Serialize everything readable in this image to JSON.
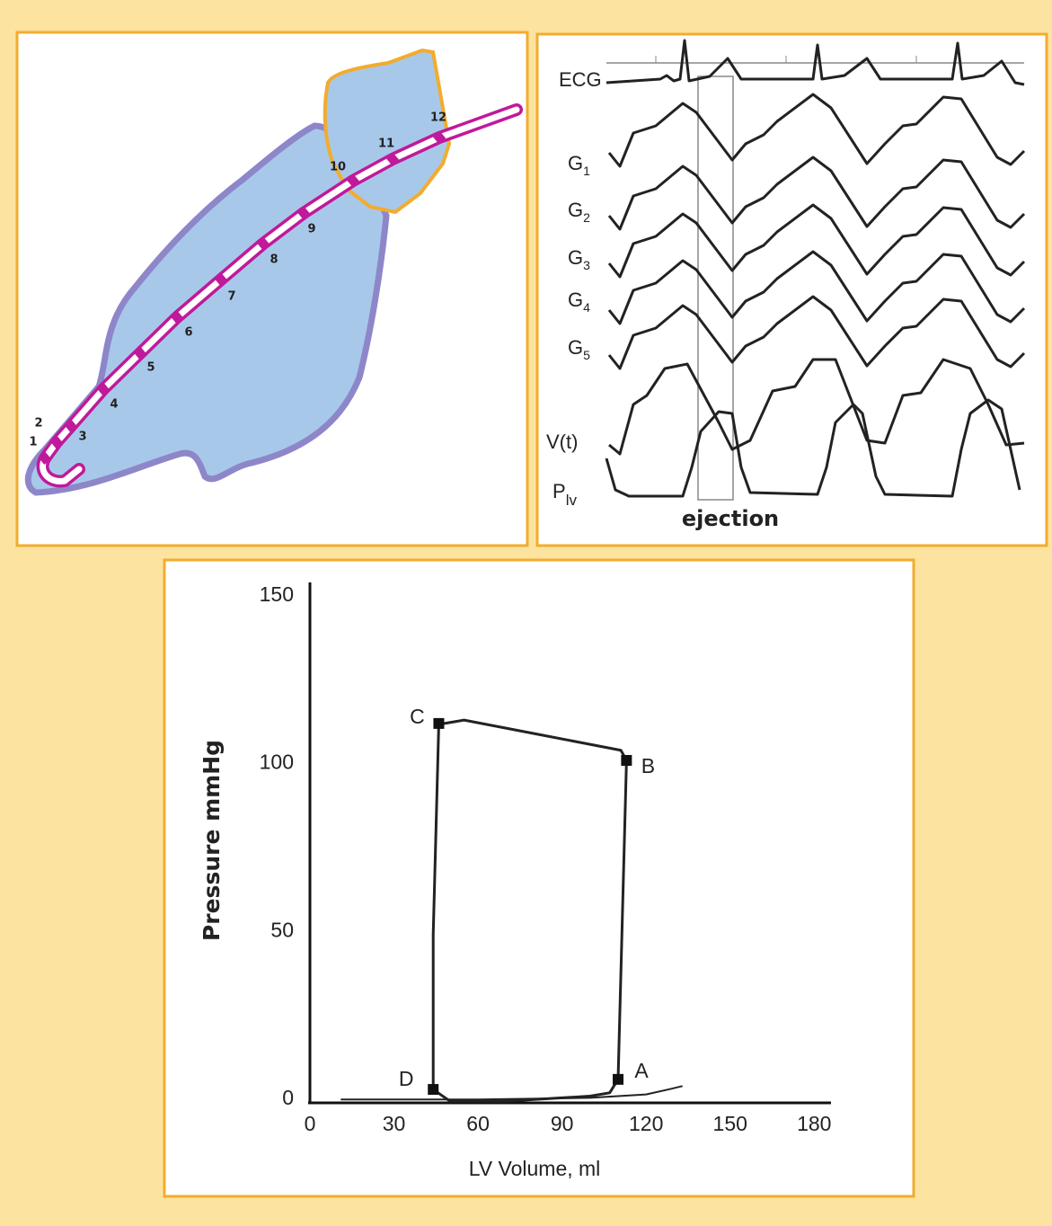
{
  "diagram": {
    "electrodes": [
      "1",
      "2",
      "3",
      "4",
      "5",
      "6",
      "7",
      "8",
      "9",
      "10",
      "11",
      "12"
    ]
  },
  "traces": {
    "ecg": "ECG",
    "g": [
      {
        "main": "G",
        "sub": "1"
      },
      {
        "main": "G",
        "sub": "2"
      },
      {
        "main": "G",
        "sub": "3"
      },
      {
        "main": "G",
        "sub": "4"
      },
      {
        "main": "G",
        "sub": "5"
      }
    ],
    "volume": "V(t)",
    "pressure": {
      "main": "P",
      "sub": "lv"
    },
    "ejection": "ejection"
  },
  "chart_data": {
    "type": "line",
    "x_label": "LV Volume, ml",
    "y_label": "Pressure mmHg",
    "xlim": [
      0,
      186
    ],
    "ylim": [
      0,
      155
    ],
    "xticks": [
      0,
      30,
      60,
      90,
      120,
      150,
      180
    ],
    "yticks": [
      0,
      50,
      100,
      150
    ],
    "series": [
      {
        "color": "#222222",
        "x": [
          44,
          50,
          70,
          100,
          107,
          110,
          113,
          111,
          80,
          55,
          48,
          46,
          44,
          44
        ],
        "values": [
          4,
          0.5,
          0.5,
          2,
          3,
          7,
          102,
          105,
          110,
          114,
          113,
          113,
          50,
          4
        ]
      },
      {
        "color": "#222222",
        "x": [
          11,
          60,
          100,
          120,
          128,
          133
        ],
        "values": [
          1,
          1,
          1.5,
          2.5,
          4,
          5
        ]
      }
    ],
    "points": [
      {
        "label": "A",
        "x": 110,
        "y": 7
      },
      {
        "label": "B",
        "x": 113,
        "y": 102
      },
      {
        "label": "C",
        "x": 46,
        "y": 113
      },
      {
        "label": "D",
        "x": 44,
        "y": 4
      }
    ]
  }
}
